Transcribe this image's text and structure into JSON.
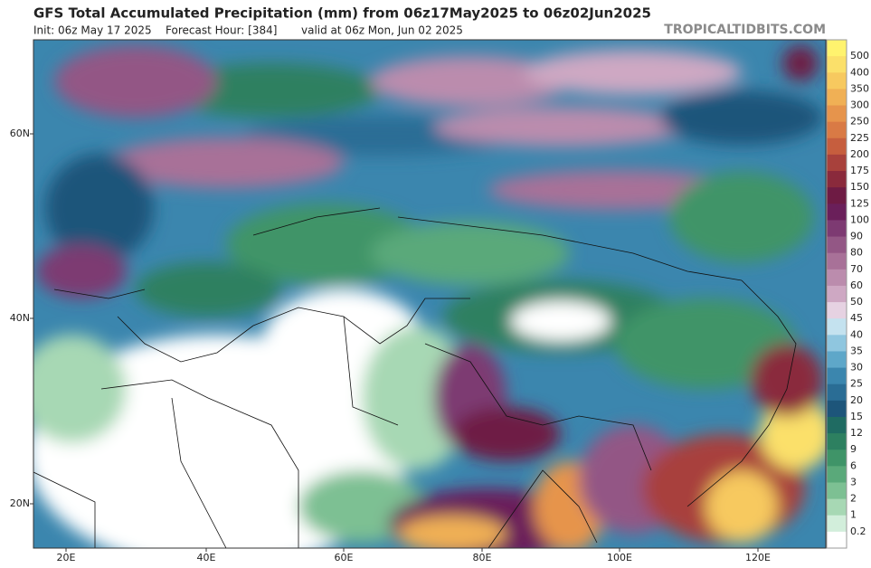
{
  "header": {
    "title": "GFS Total Accumulated Precipitation (mm) from 06z17May2025 to 06z02Jun2025",
    "init": "Init: 06z May 17 2025",
    "forecast_hour": "Forecast Hour: [384]",
    "valid": "valid at 06z Mon, Jun 02 2025",
    "watermark": "TROPICALTIDBITS.COM"
  },
  "map": {
    "lat_labels": [
      "60N",
      "40N",
      "20N"
    ],
    "lon_labels": [
      "20E",
      "40E",
      "60E",
      "80E",
      "100E",
      "120E"
    ]
  },
  "colorbar": {
    "labels": [
      500,
      400,
      350,
      300,
      250,
      225,
      200,
      175,
      150,
      125,
      100,
      90,
      80,
      70,
      60,
      50,
      45,
      40,
      35,
      30,
      25,
      20,
      15,
      12,
      9,
      6,
      3,
      2,
      1,
      0.2
    ],
    "colors": [
      "#fff36e",
      "#fbe06a",
      "#f7c95f",
      "#f0b055",
      "#e6944c",
      "#d97a45",
      "#c65e3e",
      "#a8413c",
      "#8a2a3c",
      "#6e1b44",
      "#6a1f5a",
      "#7d3a72",
      "#935785",
      "#a87198",
      "#bb8cad",
      "#cea8c3",
      "#e6d2e2",
      "#c4e2ef",
      "#8fc6df",
      "#5ea7c9",
      "#3b86ae",
      "#2a6d95",
      "#1d557a",
      "#1f6b62",
      "#2d8060",
      "#3f9468",
      "#5aa97a",
      "#7dc093",
      "#a7d8b4",
      "#d2eedb",
      "#ffffff"
    ]
  }
}
